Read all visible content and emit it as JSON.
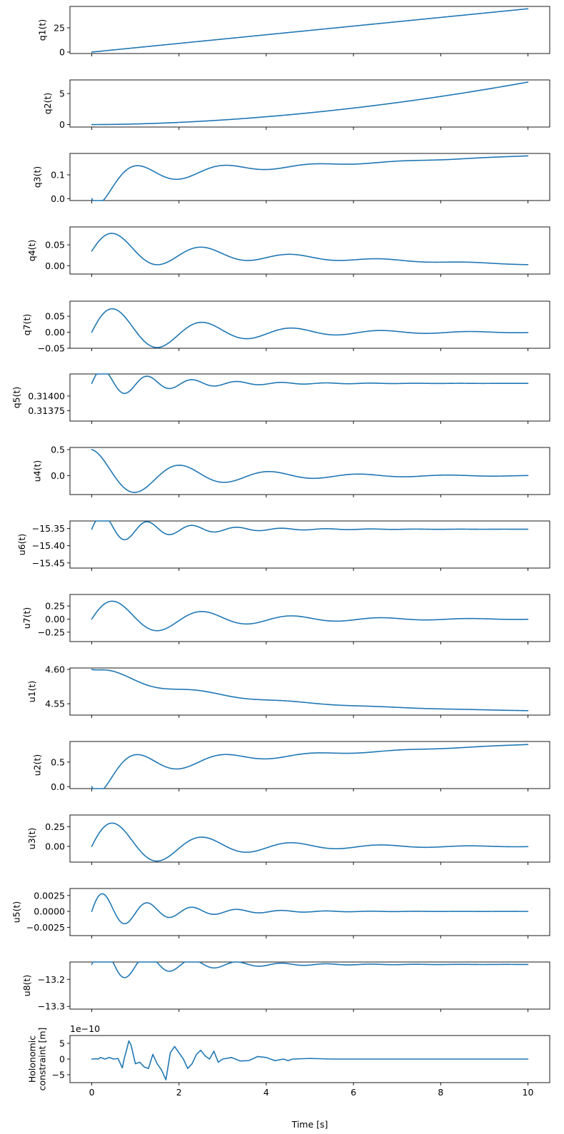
{
  "figure": {
    "xlabel": "Time [s]",
    "x_ticks": [
      0,
      2,
      4,
      6,
      8,
      10
    ],
    "x_range": [
      -0.5,
      10.5
    ],
    "line_color": "#1f77b4"
  },
  "chart_data": [
    {
      "type": "line",
      "ylabel": "q1(t)",
      "ylim": [
        -1.5,
        47
      ],
      "yticks": [
        {
          "v": 0,
          "label": "0"
        },
        {
          "v": 25,
          "label": "25"
        }
      ],
      "shape": "linear",
      "start": 0,
      "end": 44.6
    },
    {
      "type": "line",
      "ylabel": "q2(t)",
      "ylim": [
        -0.4,
        7.2
      ],
      "yticks": [
        {
          "v": 0,
          "label": "0"
        },
        {
          "v": 5,
          "label": "5"
        }
      ],
      "shape": "quadratic",
      "start": 0,
      "end": 6.85
    },
    {
      "type": "line",
      "ylabel": "q3(t)",
      "ylim": [
        -0.008,
        0.19
      ],
      "yticks": [
        {
          "v": 0,
          "label": "0.0"
        },
        {
          "v": 0.1,
          "label": "0.1"
        }
      ],
      "shape": "damped-rise",
      "start": 0,
      "end": 0.183,
      "baseline": 0.1,
      "trend": 0.08,
      "amp": 0.09,
      "decay": 0.55,
      "freq": 1.53,
      "phase": 3.1416
    },
    {
      "type": "line",
      "ylabel": "q4(t)",
      "ylim": [
        -0.02,
        0.093
      ],
      "yticks": [
        {
          "v": 0,
          "label": "0.00"
        },
        {
          "v": 0.05,
          "label": "0.05"
        }
      ],
      "shape": "damped",
      "offset_start": 0.035,
      "offset_end": 0.003,
      "amp": 0.055,
      "decay": 0.45,
      "freq": 1.53,
      "phase": -1.571
    },
    {
      "type": "line",
      "ylabel": "q7(t)",
      "ylim": [
        -0.05,
        0.097
      ],
      "yticks": [
        {
          "v": -0.05,
          "label": "−0.05"
        },
        {
          "v": 0,
          "label": "0.00"
        },
        {
          "v": 0.05,
          "label": "0.05"
        }
      ],
      "shape": "damped",
      "offset_start": 0,
      "offset_end": 0,
      "amp": 0.09,
      "decay": 0.42,
      "freq": 1.53,
      "phase": -1.571
    },
    {
      "type": "line",
      "ylabel": "q5(t)",
      "ylim": [
        0.313575,
        0.314375
      ],
      "yticks": [
        {
          "v": 0.31375,
          "label": "0.31375"
        },
        {
          "v": 0.314,
          "label": "0.31400"
        }
      ],
      "shape": "damped",
      "offset_start": 0.314215,
      "offset_end": 0.314215,
      "amp": 0.00028,
      "decay": 0.65,
      "freq": 3.06,
      "phase": -1.571
    },
    {
      "type": "line",
      "ylabel": "u4(t)",
      "ylim": [
        -0.36,
        0.54
      ],
      "yticks": [
        {
          "v": 0,
          "label": "0.0"
        },
        {
          "v": 0.5,
          "label": "0.5"
        }
      ],
      "shape": "damped",
      "offset_start": 0,
      "offset_end": 0,
      "amp": 0.5,
      "decay": 0.45,
      "freq": 1.53,
      "phase": 0
    },
    {
      "type": "line",
      "ylabel": "u6(t)",
      "ylim": [
        -15.465,
        -15.328
      ],
      "yticks": [
        {
          "v": -15.45,
          "label": "−15.45"
        },
        {
          "v": -15.4,
          "label": "−15.40"
        },
        {
          "v": -15.35,
          "label": "−15.35"
        }
      ],
      "shape": "damped",
      "offset_start": -15.352,
      "offset_end": -15.352,
      "amp": 0.05,
      "decay": 0.65,
      "freq": 3.06,
      "phase": -1.571
    },
    {
      "type": "line",
      "ylabel": "u7(t)",
      "ylim": [
        -0.43,
        0.47
      ],
      "yticks": [
        {
          "v": -0.25,
          "label": "−0.25"
        },
        {
          "v": 0,
          "label": "0.00"
        },
        {
          "v": 0.25,
          "label": "0.25"
        }
      ],
      "shape": "damped",
      "offset_start": 0,
      "offset_end": 0,
      "amp": 0.42,
      "decay": 0.42,
      "freq": 1.53,
      "phase": -1.571
    },
    {
      "type": "line",
      "ylabel": "u1(t)",
      "ylim": [
        4.5335,
        4.602
      ],
      "yticks": [
        {
          "v": 4.55,
          "label": "4.55"
        },
        {
          "v": 4.6,
          "label": "4.60"
        }
      ],
      "shape": "damped-fall",
      "start": 4.6,
      "end": 4.537,
      "trend": 0.06,
      "amp": 0.008,
      "decay": 0.5,
      "freq": 1.53,
      "phase": -1.571
    },
    {
      "type": "line",
      "ylabel": "u2(t)",
      "ylim": [
        -0.04,
        0.92
      ],
      "yticks": [
        {
          "v": 0,
          "label": "0.0"
        },
        {
          "v": 0.5,
          "label": "0.5"
        }
      ],
      "shape": "damped-rise",
      "start": 0,
      "end": 0.86,
      "baseline": 0.45,
      "trend": 0.41,
      "amp": 0.45,
      "decay": 0.55,
      "freq": 1.53,
      "phase": 3.1416
    },
    {
      "type": "line",
      "ylabel": "u3(t)",
      "ylim": [
        -0.2,
        0.4
      ],
      "yticks": [
        {
          "v": 0,
          "label": "0.00"
        },
        {
          "v": 0.25,
          "label": "0.25"
        }
      ],
      "shape": "damped",
      "offset_start": 0,
      "offset_end": 0,
      "amp": 0.37,
      "decay": 0.45,
      "freq": 1.53,
      "phase": -1.571
    },
    {
      "type": "line",
      "ylabel": "u5(t)",
      "ylim": [
        -0.0038,
        0.0036
      ],
      "yticks": [
        {
          "v": -0.0025,
          "label": "−0.0025"
        },
        {
          "v": 0,
          "label": "0.0000"
        },
        {
          "v": 0.0025,
          "label": "0.0025"
        }
      ],
      "shape": "damped",
      "offset_start": 0,
      "offset_end": 0,
      "amp": 0.0033,
      "decay": 0.7,
      "freq": 3.06,
      "phase": -1.571
    },
    {
      "type": "line",
      "ylabel": "u8(t)",
      "ylim": [
        -13.31,
        -13.136
      ],
      "yticks": [
        {
          "v": -13.3,
          "label": "−13.3"
        },
        {
          "v": -13.2,
          "label": "−13.2"
        }
      ],
      "shape": "damped",
      "offset_start": -13.145,
      "offset_end": -13.145,
      "amp": 0.08,
      "decay": 0.65,
      "freq": 3.06,
      "phase": -1.571
    },
    {
      "type": "line",
      "ylabel": "Holonomic\nconstraint [m]",
      "ylim": [
        -7.5e-10,
        7.5e-10
      ],
      "yticks": [
        {
          "v": -5e-10,
          "label": "−5"
        },
        {
          "v": 0,
          "label": "0"
        },
        {
          "v": 5e-10,
          "label": "5"
        }
      ],
      "offset_text": "1e−10",
      "shape": "points",
      "x": [
        0,
        0.1,
        0.15,
        0.2,
        0.3,
        0.4,
        0.5,
        0.6,
        0.7,
        0.75,
        0.8,
        0.85,
        0.9,
        1.0,
        1.1,
        1.2,
        1.3,
        1.4,
        1.5,
        1.6,
        1.7,
        1.8,
        1.9,
        2.0,
        2.1,
        2.2,
        2.3,
        2.4,
        2.5,
        2.6,
        2.7,
        2.8,
        2.9,
        3.0,
        3.2,
        3.4,
        3.6,
        3.8,
        4.0,
        4.2,
        4.4,
        4.5,
        4.6,
        5.0,
        5.5,
        6.0,
        6.5,
        7.0,
        7.5,
        8,
        9,
        10
      ],
      "y": [
        0,
        1e-11,
        0,
        5e-11,
        0,
        5e-11,
        0,
        2e-11,
        -2.8e-10,
        5e-11,
        3e-10,
        5.8e-10,
        4.5e-10,
        -1.5e-10,
        -1e-10,
        -2.5e-10,
        -3e-10,
        1.5e-10,
        -1.5e-10,
        -3.5e-10,
        -6.6e-10,
        2e-10,
        4e-10,
        2e-10,
        0,
        -3e-10,
        -1.5e-10,
        1.5e-10,
        2.8e-10,
        1e-10,
        0,
        2.5e-10,
        -1e-10,
        0,
        5e-11,
        -6e-11,
        -5e-11,
        8e-11,
        5e-11,
        -5e-11,
        0,
        -5e-11,
        0,
        2e-11,
        0,
        0,
        0,
        0,
        0,
        0,
        0,
        0
      ]
    }
  ]
}
